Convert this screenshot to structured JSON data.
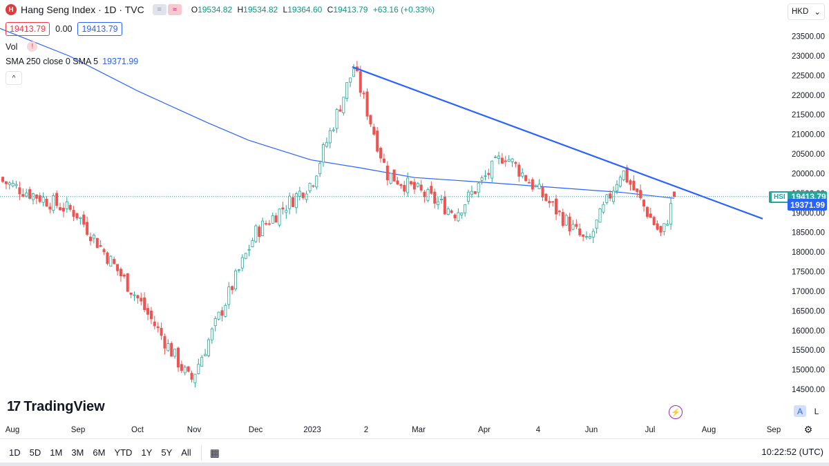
{
  "header": {
    "logo_letter": "H",
    "symbol_title": "Hang Seng Index · 1D · TVC",
    "btn_compare": "=",
    "btn_indicators": "≈",
    "ohlc": {
      "o_label": "O",
      "o": "19534.82",
      "h_label": "H",
      "h": "19534.82",
      "l_label": "L",
      "l": "19364.60",
      "c_label": "C",
      "c": "19413.79",
      "change": "+63.16 (+0.33%)"
    },
    "sell_price": "19413.79",
    "spread": "0.00",
    "buy_price": "19413.79"
  },
  "indicators": {
    "vol_label": "Vol",
    "warn_icon": "!",
    "sma_label": "SMA 250 close 0 SMA 5",
    "sma_value": "19371.99",
    "collapse_icon": "^"
  },
  "currency": {
    "label": "HKD",
    "chevron": "⌄"
  },
  "branding": {
    "mark": "17",
    "name": "TradingView"
  },
  "price_tags": {
    "hsi_name": "HSI",
    "hsi_value": "19413.79",
    "sma_value": "19371.99"
  },
  "scale_buttons": {
    "auto": "A",
    "log": "L",
    "flash_icon": "⚡",
    "gear_icon": "⚙"
  },
  "bottom_bar": {
    "ranges": [
      "1D",
      "5D",
      "1M",
      "3M",
      "6M",
      "YTD",
      "1Y",
      "5Y",
      "All"
    ],
    "calendar_icon": "▦",
    "clock": "10:22:52 (UTC)"
  },
  "colors": {
    "up": "#26a69a",
    "down": "#ef5350",
    "sma_line": "#2962ff",
    "trendline": "#2962ff",
    "current_price_line": "#26a69a"
  },
  "chart_data": {
    "type": "candlestick",
    "title": "Hang Seng Index · 1D · TVC",
    "y_axis_ticks": [
      14500,
      15000,
      15500,
      16000,
      16500,
      17000,
      17500,
      18000,
      18500,
      19000,
      19500,
      20000,
      20500,
      21000,
      21500,
      22000,
      22500,
      23000,
      23500
    ],
    "y_tick_labels": [
      "14500.00",
      "15000.00",
      "15500.00",
      "16000.00",
      "16500.00",
      "17000.00",
      "17500.00",
      "18000.00",
      "18500.00",
      "19000.00",
      "19500.00",
      "20000.00",
      "20500.00",
      "21000.00",
      "21500.00",
      "22000.00",
      "22500.00",
      "23000.00",
      "23500.00"
    ],
    "ylim": [
      14150,
      24000
    ],
    "x_axis_labels": [
      "Aug",
      "Sep",
      "Oct",
      "Nov",
      "Dec",
      "2023",
      "2",
      "Mar",
      "Apr",
      "4",
      "Jun",
      "Jul",
      "Aug",
      "Sep"
    ],
    "grid": false,
    "sessions": [
      {
        "period": "2022-08",
        "close": 19800
      },
      {
        "period": "2022-09-mid",
        "close": 19000
      },
      {
        "period": "2022-10-mid",
        "close": 16800
      },
      {
        "period": "2022-10-31",
        "close": 14700
      },
      {
        "period": "2022-11-end",
        "close": 18500
      },
      {
        "period": "2022-12-end",
        "close": 19800
      },
      {
        "period": "2023-01-27",
        "close": 22700
      },
      {
        "period": "2023-02-end",
        "close": 20000
      },
      {
        "period": "2023-03-20",
        "close": 19000
      },
      {
        "period": "2023-04-12",
        "close": 20500
      },
      {
        "period": "2023-05-31",
        "close": 18200
      },
      {
        "period": "2023-06-16",
        "close": 20100
      },
      {
        "period": "2023-07-07",
        "close": 18400
      },
      {
        "period": "2023-07-18",
        "close": 19413.79
      }
    ],
    "last_ohlc": {
      "open": 19534.82,
      "high": 19534.82,
      "low": 19364.6,
      "close": 19413.79
    },
    "sma": {
      "name": "SMA 250 close 0 SMA 5",
      "last_value": 19371.99
    },
    "trendline": {
      "from": {
        "date": "2023-01-27",
        "price": 22720
      },
      "to": {
        "date": "2023-08-31",
        "price": 18850
      }
    }
  }
}
